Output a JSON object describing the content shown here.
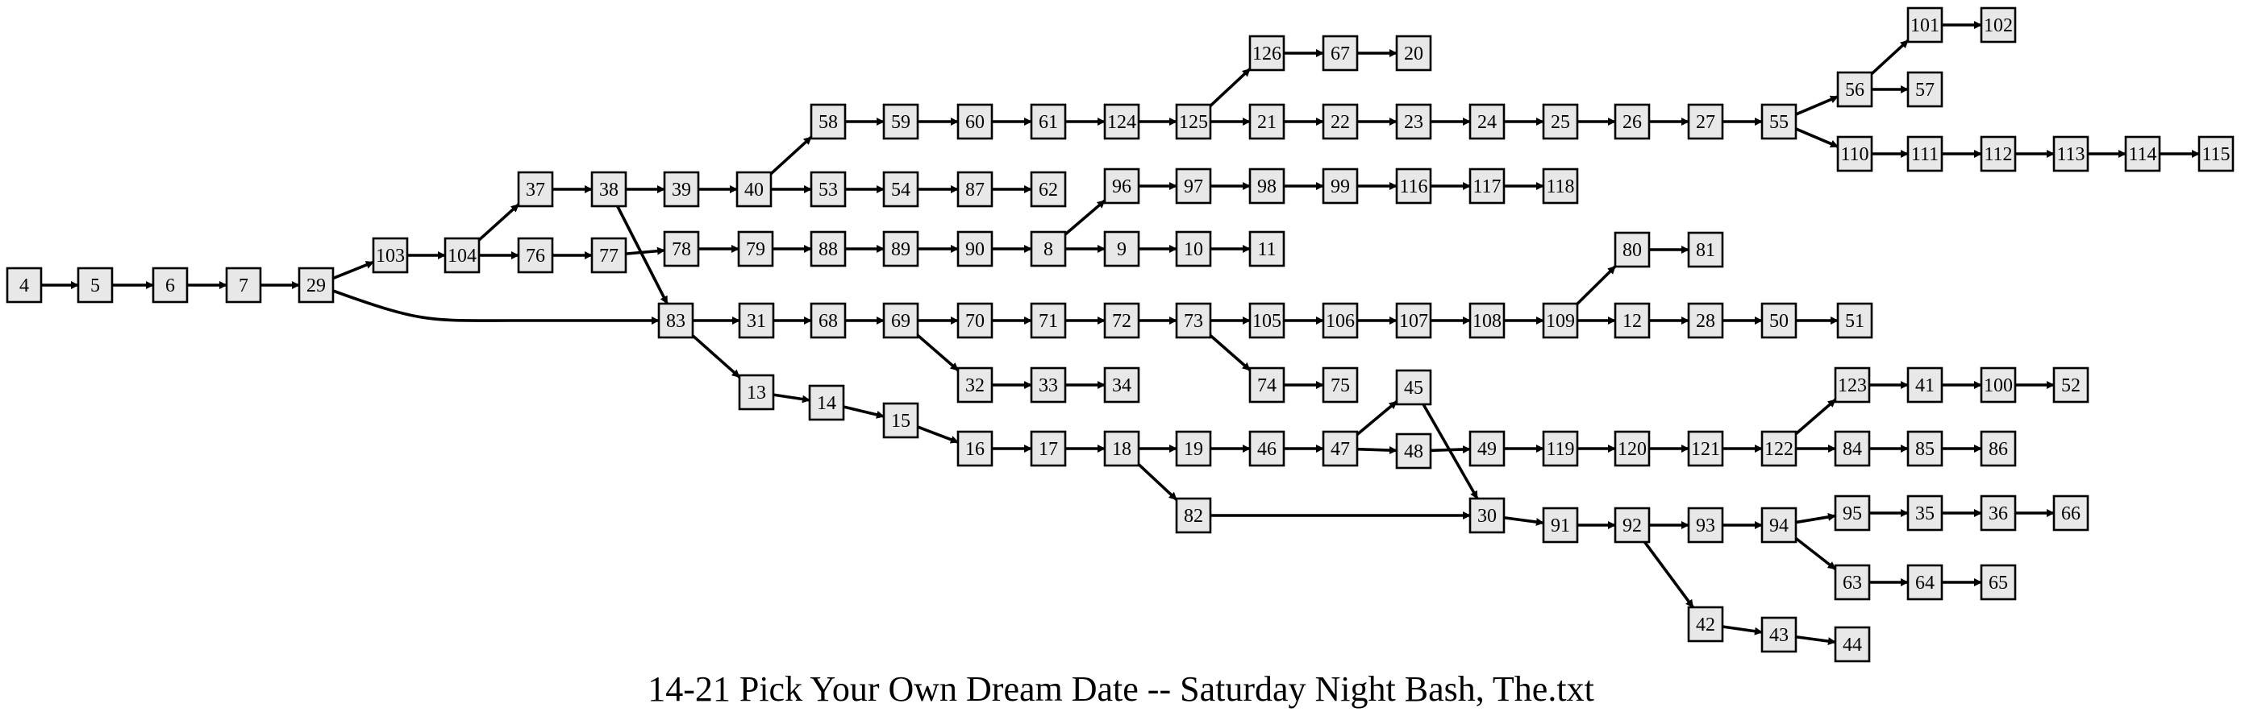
{
  "diagram": {
    "title": "14-21 Pick Your Own Dream Date -- Saturday Night Bash, The.txt",
    "nodes": [
      {
        "id": "4"
      },
      {
        "id": "5"
      },
      {
        "id": "6"
      },
      {
        "id": "7"
      },
      {
        "id": "29"
      },
      {
        "id": "103"
      },
      {
        "id": "104"
      },
      {
        "id": "37"
      },
      {
        "id": "76"
      },
      {
        "id": "38"
      },
      {
        "id": "77"
      },
      {
        "id": "39"
      },
      {
        "id": "83"
      },
      {
        "id": "78"
      },
      {
        "id": "40"
      },
      {
        "id": "31"
      },
      {
        "id": "13"
      },
      {
        "id": "79"
      },
      {
        "id": "58"
      },
      {
        "id": "53"
      },
      {
        "id": "68"
      },
      {
        "id": "14"
      },
      {
        "id": "88"
      },
      {
        "id": "59"
      },
      {
        "id": "54"
      },
      {
        "id": "69"
      },
      {
        "id": "15"
      },
      {
        "id": "89"
      },
      {
        "id": "60"
      },
      {
        "id": "87"
      },
      {
        "id": "70"
      },
      {
        "id": "32"
      },
      {
        "id": "16"
      },
      {
        "id": "90"
      },
      {
        "id": "61"
      },
      {
        "id": "62"
      },
      {
        "id": "71"
      },
      {
        "id": "33"
      },
      {
        "id": "17"
      },
      {
        "id": "8"
      },
      {
        "id": "124"
      },
      {
        "id": "72"
      },
      {
        "id": "34"
      },
      {
        "id": "18"
      },
      {
        "id": "96"
      },
      {
        "id": "9"
      },
      {
        "id": "125"
      },
      {
        "id": "73"
      },
      {
        "id": "19"
      },
      {
        "id": "82"
      },
      {
        "id": "97"
      },
      {
        "id": "10"
      },
      {
        "id": "126"
      },
      {
        "id": "21"
      },
      {
        "id": "105"
      },
      {
        "id": "74"
      },
      {
        "id": "46"
      },
      {
        "id": "98"
      },
      {
        "id": "11"
      },
      {
        "id": "67"
      },
      {
        "id": "22"
      },
      {
        "id": "106"
      },
      {
        "id": "75"
      },
      {
        "id": "47"
      },
      {
        "id": "99"
      },
      {
        "id": "20"
      },
      {
        "id": "23"
      },
      {
        "id": "107"
      },
      {
        "id": "45"
      },
      {
        "id": "48"
      },
      {
        "id": "116"
      },
      {
        "id": "24"
      },
      {
        "id": "108"
      },
      {
        "id": "49"
      },
      {
        "id": "30"
      },
      {
        "id": "117"
      },
      {
        "id": "25"
      },
      {
        "id": "109"
      },
      {
        "id": "119"
      },
      {
        "id": "91"
      },
      {
        "id": "118"
      },
      {
        "id": "26"
      },
      {
        "id": "80"
      },
      {
        "id": "12"
      },
      {
        "id": "120"
      },
      {
        "id": "92"
      },
      {
        "id": "27"
      },
      {
        "id": "81"
      },
      {
        "id": "28"
      },
      {
        "id": "121"
      },
      {
        "id": "93"
      },
      {
        "id": "42"
      },
      {
        "id": "55"
      },
      {
        "id": "50"
      },
      {
        "id": "122"
      },
      {
        "id": "94"
      },
      {
        "id": "43"
      },
      {
        "id": "56"
      },
      {
        "id": "110"
      },
      {
        "id": "51"
      },
      {
        "id": "123"
      },
      {
        "id": "84"
      },
      {
        "id": "95"
      },
      {
        "id": "63"
      },
      {
        "id": "44"
      },
      {
        "id": "101"
      },
      {
        "id": "57"
      },
      {
        "id": "111"
      },
      {
        "id": "41"
      },
      {
        "id": "85"
      },
      {
        "id": "35"
      },
      {
        "id": "64"
      },
      {
        "id": "102"
      },
      {
        "id": "112"
      },
      {
        "id": "100"
      },
      {
        "id": "86"
      },
      {
        "id": "36"
      },
      {
        "id": "65"
      },
      {
        "id": "113"
      },
      {
        "id": "52"
      },
      {
        "id": "66"
      },
      {
        "id": "114"
      },
      {
        "id": "115"
      }
    ],
    "edges": [
      [
        "4",
        "5"
      ],
      [
        "5",
        "6"
      ],
      [
        "6",
        "7"
      ],
      [
        "7",
        "29"
      ],
      [
        "29",
        "103"
      ],
      [
        "29",
        "83"
      ],
      [
        "103",
        "104"
      ],
      [
        "104",
        "37"
      ],
      [
        "104",
        "76"
      ],
      [
        "37",
        "38"
      ],
      [
        "76",
        "77"
      ],
      [
        "38",
        "39"
      ],
      [
        "38",
        "83"
      ],
      [
        "77",
        "78"
      ],
      [
        "39",
        "40"
      ],
      [
        "83",
        "31"
      ],
      [
        "83",
        "13"
      ],
      [
        "78",
        "79"
      ],
      [
        "40",
        "58"
      ],
      [
        "40",
        "53"
      ],
      [
        "31",
        "68"
      ],
      [
        "13",
        "14"
      ],
      [
        "79",
        "88"
      ],
      [
        "58",
        "59"
      ],
      [
        "53",
        "54"
      ],
      [
        "68",
        "69"
      ],
      [
        "14",
        "15"
      ],
      [
        "88",
        "89"
      ],
      [
        "59",
        "60"
      ],
      [
        "54",
        "87"
      ],
      [
        "69",
        "70"
      ],
      [
        "69",
        "32"
      ],
      [
        "15",
        "16"
      ],
      [
        "89",
        "90"
      ],
      [
        "60",
        "61"
      ],
      [
        "87",
        "62"
      ],
      [
        "70",
        "71"
      ],
      [
        "32",
        "33"
      ],
      [
        "16",
        "17"
      ],
      [
        "90",
        "8"
      ],
      [
        "61",
        "124"
      ],
      [
        "71",
        "72"
      ],
      [
        "33",
        "34"
      ],
      [
        "17",
        "18"
      ],
      [
        "8",
        "96"
      ],
      [
        "8",
        "9"
      ],
      [
        "124",
        "125"
      ],
      [
        "72",
        "73"
      ],
      [
        "18",
        "19"
      ],
      [
        "18",
        "82"
      ],
      [
        "96",
        "97"
      ],
      [
        "9",
        "10"
      ],
      [
        "125",
        "126"
      ],
      [
        "125",
        "21"
      ],
      [
        "73",
        "105"
      ],
      [
        "73",
        "74"
      ],
      [
        "19",
        "46"
      ],
      [
        "82",
        "30"
      ],
      [
        "97",
        "98"
      ],
      [
        "10",
        "11"
      ],
      [
        "126",
        "67"
      ],
      [
        "21",
        "22"
      ],
      [
        "105",
        "106"
      ],
      [
        "74",
        "75"
      ],
      [
        "46",
        "47"
      ],
      [
        "98",
        "99"
      ],
      [
        "67",
        "20"
      ],
      [
        "22",
        "23"
      ],
      [
        "106",
        "107"
      ],
      [
        "47",
        "45"
      ],
      [
        "47",
        "48"
      ],
      [
        "99",
        "116"
      ],
      [
        "23",
        "24"
      ],
      [
        "107",
        "108"
      ],
      [
        "45",
        "30"
      ],
      [
        "48",
        "49"
      ],
      [
        "116",
        "117"
      ],
      [
        "24",
        "25"
      ],
      [
        "108",
        "109"
      ],
      [
        "49",
        "119"
      ],
      [
        "30",
        "91"
      ],
      [
        "117",
        "118"
      ],
      [
        "25",
        "26"
      ],
      [
        "109",
        "80"
      ],
      [
        "109",
        "12"
      ],
      [
        "119",
        "120"
      ],
      [
        "91",
        "92"
      ],
      [
        "26",
        "27"
      ],
      [
        "80",
        "81"
      ],
      [
        "12",
        "28"
      ],
      [
        "120",
        "121"
      ],
      [
        "92",
        "93"
      ],
      [
        "92",
        "42"
      ],
      [
        "27",
        "55"
      ],
      [
        "28",
        "50"
      ],
      [
        "121",
        "122"
      ],
      [
        "93",
        "94"
      ],
      [
        "42",
        "43"
      ],
      [
        "55",
        "56"
      ],
      [
        "55",
        "110"
      ],
      [
        "50",
        "51"
      ],
      [
        "122",
        "123"
      ],
      [
        "122",
        "84"
      ],
      [
        "94",
        "95"
      ],
      [
        "94",
        "63"
      ],
      [
        "43",
        "44"
      ],
      [
        "56",
        "101"
      ],
      [
        "56",
        "57"
      ],
      [
        "110",
        "111"
      ],
      [
        "123",
        "41"
      ],
      [
        "84",
        "85"
      ],
      [
        "95",
        "35"
      ],
      [
        "63",
        "64"
      ],
      [
        "101",
        "102"
      ],
      [
        "111",
        "112"
      ],
      [
        "41",
        "100"
      ],
      [
        "85",
        "86"
      ],
      [
        "35",
        "36"
      ],
      [
        "64",
        "65"
      ],
      [
        "112",
        "113"
      ],
      [
        "100",
        "52"
      ],
      [
        "36",
        "66"
      ],
      [
        "113",
        "114"
      ],
      [
        "114",
        "115"
      ]
    ]
  }
}
